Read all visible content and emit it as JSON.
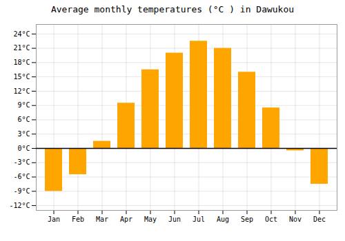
{
  "chart_data": {
    "type": "bar",
    "title": "Average monthly temperatures (°C ) in Dawukou",
    "categories": [
      "Jan",
      "Feb",
      "Mar",
      "Apr",
      "May",
      "Jun",
      "Jul",
      "Aug",
      "Sep",
      "Oct",
      "Nov",
      "Dec"
    ],
    "values": [
      -9,
      -5.5,
      1.5,
      9.5,
      16.5,
      20,
      22.5,
      21,
      16,
      8.5,
      -0.5,
      -7.5
    ],
    "color": "#FFA500",
    "ylim": [
      -13,
      26
    ],
    "yticks": [
      {
        "value": -12,
        "label": "-12°C"
      },
      {
        "value": -9,
        "label": "-9°C"
      },
      {
        "value": -6,
        "label": "-6°C"
      },
      {
        "value": -3,
        "label": "-3°C"
      },
      {
        "value": 0,
        "label": "0°C"
      },
      {
        "value": 3,
        "label": "3°C"
      },
      {
        "value": 6,
        "label": "6°C"
      },
      {
        "value": 9,
        "label": "9°C"
      },
      {
        "value": 12,
        "label": "12°C"
      },
      {
        "value": 15,
        "label": "15°C"
      },
      {
        "value": 18,
        "label": "18°C"
      },
      {
        "value": 21,
        "label": "21°C"
      },
      {
        "value": 24,
        "label": "24°C"
      }
    ],
    "grid": true
  }
}
